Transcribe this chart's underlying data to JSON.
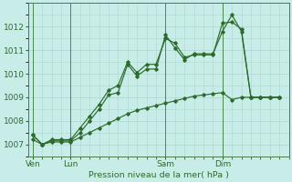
{
  "background_color": "#c8ece8",
  "grid_color": "#a8d8cc",
  "line_color": "#2d6b2d",
  "marker_color": "#2d6b2d",
  "xlabel_text": "Pression niveau de la mer( hPa )",
  "ylim": [
    1006.5,
    1013.0
  ],
  "yticks": [
    1007,
    1008,
    1009,
    1010,
    1011,
    1012
  ],
  "day_labels": [
    "Ven",
    "Lun",
    "Sam",
    "Dim"
  ],
  "day_positions": [
    0,
    4,
    14,
    20
  ],
  "vline_positions": [
    0,
    4,
    14,
    20
  ],
  "xlim": [
    -0.5,
    27
  ],
  "series1_x": [
    0,
    1,
    2,
    3,
    4,
    5,
    6,
    7,
    8,
    9,
    10,
    11,
    12,
    13,
    14,
    15,
    16,
    17,
    18,
    19,
    20,
    21,
    22,
    23,
    24,
    25,
    26
  ],
  "series1_y": [
    1007.4,
    1007.0,
    1007.2,
    1007.2,
    1007.2,
    1007.7,
    1008.2,
    1008.7,
    1009.3,
    1009.5,
    1010.5,
    1010.05,
    1010.4,
    1010.4,
    1011.5,
    1011.3,
    1010.7,
    1010.8,
    1010.8,
    1010.8,
    1012.15,
    1012.2,
    1011.9,
    1009.0,
    1009.0,
    1009.0,
    1009.0
  ],
  "series2_x": [
    0,
    1,
    2,
    3,
    4,
    5,
    6,
    7,
    8,
    9,
    10,
    11,
    12,
    13,
    14,
    15,
    16,
    17,
    18,
    19,
    20,
    21,
    22,
    23,
    24,
    25,
    26
  ],
  "series2_y": [
    1007.4,
    1007.0,
    1007.15,
    1007.15,
    1007.15,
    1007.5,
    1008.0,
    1008.5,
    1009.1,
    1009.2,
    1010.4,
    1009.9,
    1010.2,
    1010.2,
    1011.65,
    1011.1,
    1010.6,
    1010.85,
    1010.85,
    1010.85,
    1011.8,
    1012.5,
    1011.8,
    1009.0,
    1009.0,
    1009.0,
    1009.0
  ],
  "series3_x": [
    0,
    1,
    2,
    3,
    4,
    5,
    6,
    7,
    8,
    9,
    10,
    11,
    12,
    13,
    14,
    15,
    16,
    17,
    18,
    19,
    20,
    21,
    22,
    23,
    24,
    25,
    26
  ],
  "series3_y": [
    1007.2,
    1007.0,
    1007.1,
    1007.1,
    1007.1,
    1007.3,
    1007.5,
    1007.7,
    1007.9,
    1008.1,
    1008.3,
    1008.45,
    1008.55,
    1008.65,
    1008.75,
    1008.85,
    1008.95,
    1009.05,
    1009.1,
    1009.15,
    1009.2,
    1008.9,
    1009.0,
    1009.0,
    1009.0,
    1009.0,
    1009.0
  ]
}
